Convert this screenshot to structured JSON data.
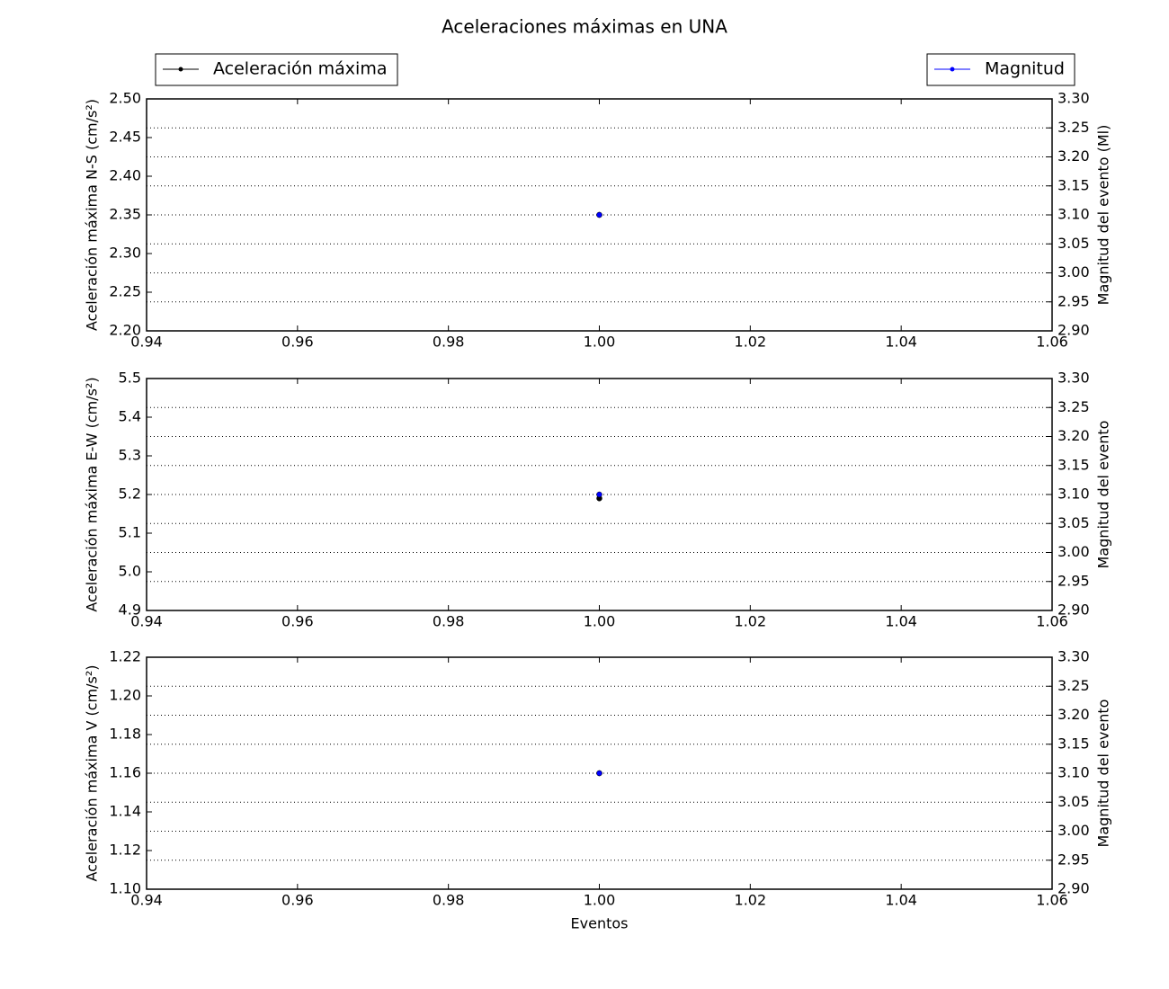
{
  "title": "Aceleraciones máximas en UNA",
  "legend": {
    "left": "upper left",
    "right": "upper right"
  },
  "chart_data": [
    {
      "type": "scatter",
      "ylabel": "Aceleración máxima N-S (cm/s²)",
      "y2label": "Magnitud del evento (Ml)",
      "x": [
        1.0
      ],
      "series": [
        {
          "name": "Aceleración máxima",
          "color": "#000000",
          "values": [
            2.35
          ]
        },
        {
          "name": "Magnitud",
          "color": "#0000ff",
          "values": [
            3.1
          ],
          "axis": "y2"
        }
      ],
      "xlim": [
        0.94,
        1.06
      ],
      "xticks": [
        0.94,
        0.96,
        0.98,
        {
          "value": 1.0,
          "label": "1.00"
        },
        1.02,
        1.04,
        1.06
      ],
      "ylim": [
        2.2,
        2.5
      ],
      "yticks": [
        {
          "value": 2.2,
          "label": "2.20"
        },
        2.25,
        {
          "value": 2.3,
          "label": "2.30"
        },
        2.35,
        {
          "value": 2.4,
          "label": "2.40"
        },
        2.45,
        {
          "value": 2.5,
          "label": "2.50"
        }
      ],
      "y2lim": [
        2.9,
        3.3
      ],
      "y2ticks": [
        {
          "value": 2.9,
          "label": "2.90"
        },
        2.95,
        {
          "value": 3.0,
          "label": "3.00"
        },
        3.05,
        {
          "value": 3.1,
          "label": "3.10"
        },
        3.15,
        {
          "value": 3.2,
          "label": "3.20"
        },
        3.25,
        {
          "value": 3.3,
          "label": "3.30"
        }
      ],
      "grid": "y2"
    },
    {
      "type": "scatter",
      "ylabel": "Aceleración máxima E-W (cm/s²)",
      "y2label": "Magnitud del evento",
      "x": [
        1.0
      ],
      "series": [
        {
          "name": "Aceleración máxima",
          "color": "#000000",
          "values": [
            5.19
          ]
        },
        {
          "name": "Magnitud",
          "color": "#0000ff",
          "values": [
            3.1
          ],
          "axis": "y2"
        }
      ],
      "xlim": [
        0.94,
        1.06
      ],
      "xticks": [
        0.94,
        0.96,
        0.98,
        {
          "value": 1.0,
          "label": "1.00"
        },
        1.02,
        1.04,
        1.06
      ],
      "ylim": [
        4.9,
        5.5
      ],
      "yticks": [
        4.9,
        {
          "value": 5.0,
          "label": "5.0"
        },
        5.1,
        5.2,
        5.3,
        5.4,
        5.5
      ],
      "y2lim": [
        2.9,
        3.3
      ],
      "y2ticks": [
        {
          "value": 2.9,
          "label": "2.90"
        },
        2.95,
        {
          "value": 3.0,
          "label": "3.00"
        },
        3.05,
        {
          "value": 3.1,
          "label": "3.10"
        },
        3.15,
        {
          "value": 3.2,
          "label": "3.20"
        },
        3.25,
        {
          "value": 3.3,
          "label": "3.30"
        }
      ],
      "grid": "y2"
    },
    {
      "type": "scatter",
      "ylabel": "Aceleración máxima V (cm/s²)",
      "y2label": "Magnitud del evento",
      "xlabel": "Eventos",
      "x": [
        1.0
      ],
      "series": [
        {
          "name": "Aceleración máxima",
          "color": "#000000",
          "values": [
            1.16
          ]
        },
        {
          "name": "Magnitud",
          "color": "#0000ff",
          "values": [
            3.1
          ],
          "axis": "y2"
        }
      ],
      "xlim": [
        0.94,
        1.06
      ],
      "xticks": [
        0.94,
        0.96,
        0.98,
        {
          "value": 1.0,
          "label": "1.00"
        },
        1.02,
        1.04,
        1.06
      ],
      "ylim": [
        1.1,
        1.22
      ],
      "yticks": [
        {
          "value": 1.1,
          "label": "1.10"
        },
        1.12,
        1.14,
        1.16,
        1.18,
        {
          "value": 1.2,
          "label": "1.20"
        },
        1.22
      ],
      "y2lim": [
        2.9,
        3.3
      ],
      "y2ticks": [
        {
          "value": 2.9,
          "label": "2.90"
        },
        2.95,
        {
          "value": 3.0,
          "label": "3.00"
        },
        3.05,
        {
          "value": 3.1,
          "label": "3.10"
        },
        3.15,
        {
          "value": 3.2,
          "label": "3.20"
        },
        3.25,
        {
          "value": 3.3,
          "label": "3.30"
        }
      ],
      "grid": "y2"
    }
  ]
}
